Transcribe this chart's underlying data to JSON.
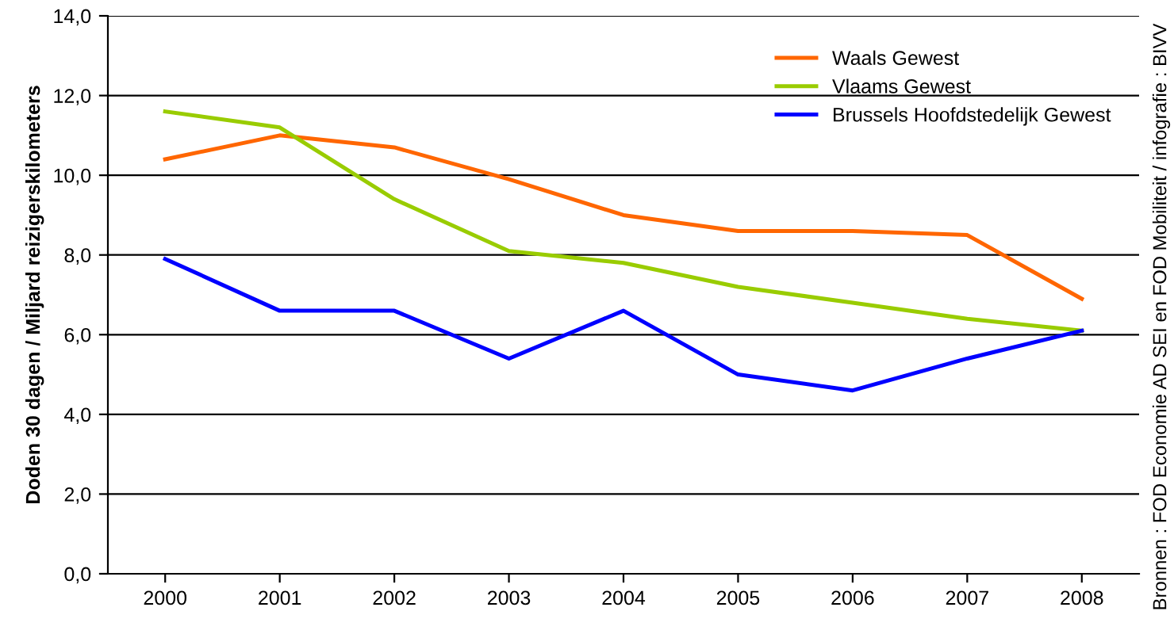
{
  "chart_data": {
    "type": "line",
    "ylabel": "Doden 30 dagen / Miljard reizigerskilometers",
    "categories": [
      "2000",
      "2001",
      "2002",
      "2003",
      "2004",
      "2005",
      "2006",
      "2007",
      "2008"
    ],
    "series": [
      {
        "name": "Waals Gewest",
        "color": "#ff6600",
        "values": [
          10.4,
          11.0,
          10.7,
          9.9,
          9.0,
          8.6,
          8.6,
          8.5,
          6.9
        ]
      },
      {
        "name": "Vlaams Gewest",
        "color": "#99cc00",
        "values": [
          11.6,
          11.2,
          9.4,
          8.1,
          7.8,
          7.2,
          6.8,
          6.4,
          6.1
        ]
      },
      {
        "name": "Brussels Hoofdstedelijk Gewest",
        "color": "#0000ff",
        "values": [
          7.9,
          6.6,
          6.6,
          5.4,
          6.6,
          5.0,
          4.6,
          5.4,
          6.1
        ]
      }
    ],
    "ylim": [
      0,
      14
    ],
    "yticks": [
      {
        "value": 0,
        "label": "0,0"
      },
      {
        "value": 2,
        "label": "2,0"
      },
      {
        "value": 4,
        "label": "4,0"
      },
      {
        "value": 6,
        "label": "6,0"
      },
      {
        "value": 8,
        "label": "8,0"
      },
      {
        "value": 10,
        "label": "10,0"
      },
      {
        "value": 12,
        "label": "12,0"
      },
      {
        "value": 14,
        "label": "14,0"
      }
    ],
    "grid": "y",
    "legend": "top right",
    "marker": "none",
    "line_style": "solid",
    "annotations": [
      "Bronnen : FOD Economie AD SEI en FOD Mobiliteit / infografie : BIVV"
    ]
  }
}
